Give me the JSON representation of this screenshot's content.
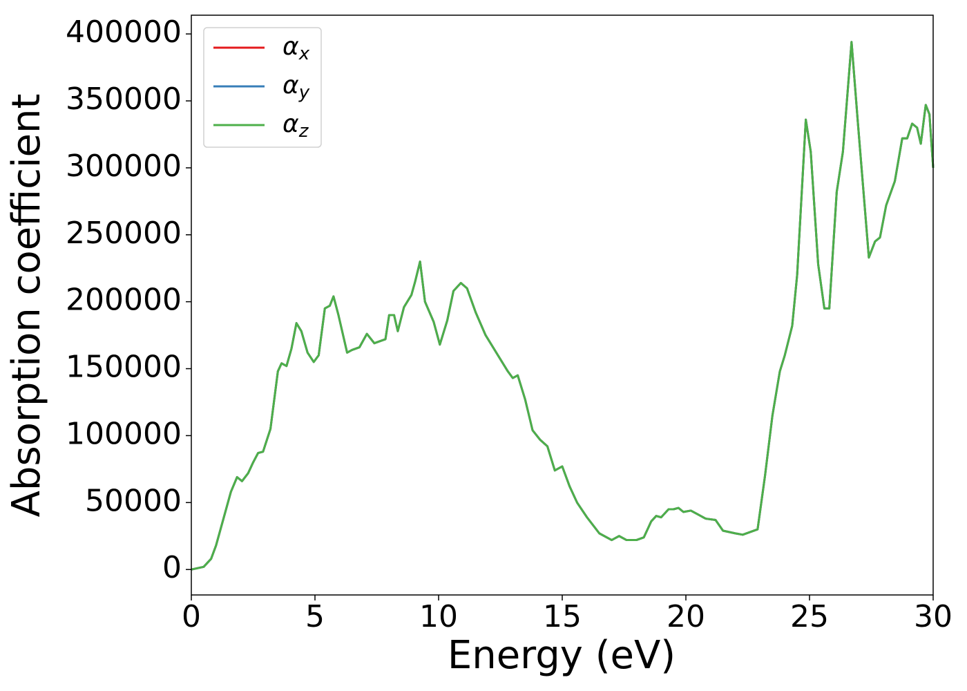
{
  "chart_data": {
    "type": "line",
    "xlabel": "Energy (eV)",
    "ylabel": "Absorption coefficient",
    "x": [
      0,
      0.5,
      0.8,
      1.0,
      1.3,
      1.6,
      1.85,
      2.05,
      2.3,
      2.5,
      2.7,
      2.9,
      3.2,
      3.5,
      3.65,
      3.85,
      4.05,
      4.25,
      4.45,
      4.7,
      4.95,
      5.15,
      5.4,
      5.6,
      5.75,
      5.95,
      6.3,
      6.5,
      6.8,
      7.1,
      7.4,
      7.7,
      7.85,
      8.0,
      8.2,
      8.35,
      8.6,
      8.9,
      9.05,
      9.25,
      9.45,
      9.8,
      10.05,
      10.35,
      10.6,
      10.9,
      11.15,
      11.5,
      11.9,
      12.4,
      12.8,
      13.0,
      13.2,
      13.5,
      13.8,
      14.1,
      14.4,
      14.7,
      15.0,
      15.3,
      15.6,
      16.0,
      16.5,
      17.0,
      17.3,
      17.6,
      18.0,
      18.3,
      18.6,
      18.8,
      19.0,
      19.3,
      19.5,
      19.7,
      19.9,
      20.2,
      20.5,
      20.8,
      21.2,
      21.5,
      22.0,
      22.3,
      22.6,
      22.9,
      23.2,
      23.5,
      23.8,
      24.0,
      24.3,
      24.5,
      24.85,
      25.05,
      25.35,
      25.6,
      25.8,
      26.1,
      26.35,
      26.7,
      26.95,
      27.4,
      27.65,
      27.85,
      28.1,
      28.45,
      28.75,
      28.95,
      29.15,
      29.35,
      29.5,
      29.7,
      29.85,
      30.0
    ],
    "series": [
      {
        "name": "αx",
        "color": "#e41a1c",
        "values": [
          0,
          2000,
          8000,
          18000,
          38000,
          58000,
          69000,
          66000,
          72000,
          80000,
          87000,
          88000,
          105000,
          148000,
          154000,
          152000,
          165000,
          184000,
          178000,
          162000,
          155000,
          160000,
          195000,
          197000,
          204000,
          190000,
          162000,
          164000,
          166000,
          176000,
          169000,
          171000,
          172000,
          190000,
          190000,
          178000,
          196000,
          205000,
          215000,
          230000,
          200000,
          185000,
          168000,
          186000,
          208000,
          214000,
          210000,
          192000,
          175000,
          160000,
          148000,
          143000,
          145000,
          127000,
          104000,
          97000,
          92000,
          74000,
          77000,
          62000,
          50000,
          39000,
          27000,
          22000,
          25000,
          22000,
          22000,
          24000,
          36000,
          40000,
          39000,
          45000,
          45000,
          46000,
          43000,
          44000,
          41000,
          38000,
          37000,
          29000,
          27000,
          26000,
          28000,
          30000,
          70000,
          115000,
          148000,
          160000,
          182000,
          220000,
          336000,
          312000,
          228000,
          195000,
          195000,
          282000,
          312000,
          394000,
          335000,
          233000,
          245000,
          248000,
          272000,
          290000,
          322000,
          322000,
          333000,
          330000,
          318000,
          347000,
          340000,
          300000
        ]
      },
      {
        "name": "αy",
        "color": "#377eb8",
        "values": [
          0,
          2000,
          8000,
          18000,
          38000,
          58000,
          69000,
          66000,
          72000,
          80000,
          87000,
          88000,
          105000,
          148000,
          154000,
          152000,
          165000,
          184000,
          178000,
          162000,
          155000,
          160000,
          195000,
          197000,
          204000,
          190000,
          162000,
          164000,
          166000,
          176000,
          169000,
          171000,
          172000,
          190000,
          190000,
          178000,
          196000,
          205000,
          215000,
          230000,
          200000,
          185000,
          168000,
          186000,
          208000,
          214000,
          210000,
          192000,
          175000,
          160000,
          148000,
          143000,
          145000,
          127000,
          104000,
          97000,
          92000,
          74000,
          77000,
          62000,
          50000,
          39000,
          27000,
          22000,
          25000,
          22000,
          22000,
          24000,
          36000,
          40000,
          39000,
          45000,
          45000,
          46000,
          43000,
          44000,
          41000,
          38000,
          37000,
          29000,
          27000,
          26000,
          28000,
          30000,
          70000,
          115000,
          148000,
          160000,
          182000,
          220000,
          336000,
          312000,
          228000,
          195000,
          195000,
          282000,
          312000,
          394000,
          335000,
          233000,
          245000,
          248000,
          272000,
          290000,
          322000,
          322000,
          333000,
          330000,
          318000,
          347000,
          340000,
          300000
        ]
      },
      {
        "name": "αz",
        "color": "#4daf4a",
        "values": [
          0,
          2000,
          8000,
          18000,
          38000,
          58000,
          69000,
          66000,
          72000,
          80000,
          87000,
          88000,
          105000,
          148000,
          154000,
          152000,
          165000,
          184000,
          178000,
          162000,
          155000,
          160000,
          195000,
          197000,
          204000,
          190000,
          162000,
          164000,
          166000,
          176000,
          169000,
          171000,
          172000,
          190000,
          190000,
          178000,
          196000,
          205000,
          215000,
          230000,
          200000,
          185000,
          168000,
          186000,
          208000,
          214000,
          210000,
          192000,
          175000,
          160000,
          148000,
          143000,
          145000,
          127000,
          104000,
          97000,
          92000,
          74000,
          77000,
          62000,
          50000,
          39000,
          27000,
          22000,
          25000,
          22000,
          22000,
          24000,
          36000,
          40000,
          39000,
          45000,
          45000,
          46000,
          43000,
          44000,
          41000,
          38000,
          37000,
          29000,
          27000,
          26000,
          28000,
          30000,
          70000,
          115000,
          148000,
          160000,
          182000,
          220000,
          336000,
          312000,
          228000,
          195000,
          195000,
          282000,
          312000,
          394000,
          335000,
          233000,
          245000,
          248000,
          272000,
          290000,
          322000,
          322000,
          333000,
          330000,
          318000,
          347000,
          340000,
          300000
        ]
      }
    ],
    "xlim": [
      0,
      30
    ],
    "xticks": [
      0,
      5,
      10,
      15,
      20,
      25,
      30
    ],
    "ylim": [
      -19000,
      414000
    ],
    "yticks": [
      0,
      50000,
      100000,
      150000,
      200000,
      250000,
      300000,
      350000,
      400000
    ],
    "grid": false,
    "legend": "upper left"
  }
}
